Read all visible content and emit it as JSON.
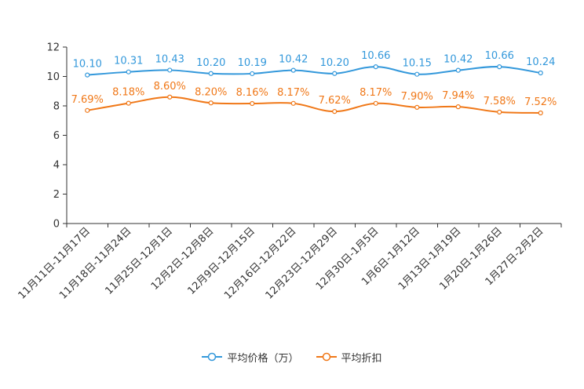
{
  "chart_data": {
    "type": "line",
    "title": "",
    "xlabel": "",
    "ylabel": "",
    "ylim": [
      0,
      12
    ],
    "yticks": [
      0,
      2,
      4,
      6,
      8,
      10,
      12
    ],
    "grid": false,
    "legend_position": "bottom-center",
    "categories": [
      "11月11日-11月17日",
      "11月18日-11月24日",
      "11月25日-12月1日",
      "12月2日-12月8日",
      "12月9日-12月15日",
      "12月16日-12月22日",
      "12月23日-12月29日",
      "12月30日-1月5日",
      "1月6日-1月12日",
      "1月13日-1月19日",
      "1月20日-1月26日",
      "1月27日-2月2日"
    ],
    "series": [
      {
        "name": "平均价格（万）",
        "color": "#3398DB",
        "values": [
          10.1,
          10.31,
          10.43,
          10.2,
          10.19,
          10.42,
          10.2,
          10.66,
          10.15,
          10.42,
          10.66,
          10.24
        ],
        "labels": [
          "10.10",
          "10.31",
          "10.43",
          "10.20",
          "10.19",
          "10.42",
          "10.20",
          "10.66",
          "10.15",
          "10.42",
          "10.66",
          "10.24"
        ]
      },
      {
        "name": "平均折扣",
        "color": "#F07818",
        "values": [
          7.69,
          8.18,
          8.6,
          8.2,
          8.16,
          8.17,
          7.62,
          8.17,
          7.9,
          7.94,
          7.58,
          7.52
        ],
        "labels": [
          "7.69%",
          "8.18%",
          "8.60%",
          "8.20%",
          "8.16%",
          "8.17%",
          "7.62%",
          "8.17%",
          "7.90%",
          "7.94%",
          "7.58%",
          "7.52%"
        ]
      }
    ]
  }
}
